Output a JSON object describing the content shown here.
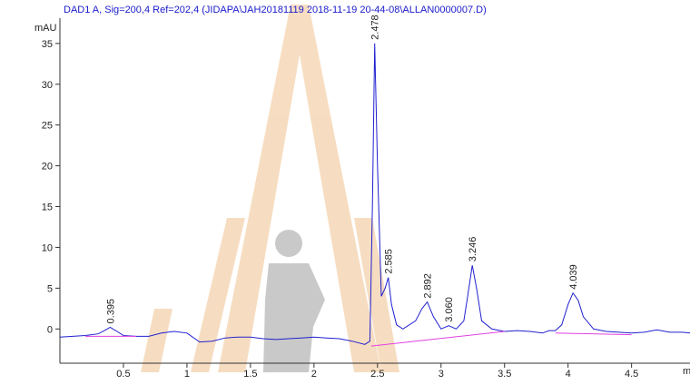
{
  "chart_data": {
    "type": "line",
    "title": "DAD1 A, Sig=200,4 Ref=202,4 (JIDAPA\\JAH20181119 2018-11-19 20-44-08\\ALLAN0000007.D)",
    "y_label": "mAU",
    "x_label": "m",
    "xlim": [
      0,
      4.96
    ],
    "ylim": [
      -4.2,
      38.1
    ],
    "xticks": [
      0.5,
      1,
      1.5,
      2,
      2.5,
      3,
      3.5,
      4,
      4.5
    ],
    "yticks": [
      0,
      5,
      10,
      15,
      20,
      25,
      30,
      35
    ],
    "series": [
      {
        "color": "#2020d0",
        "x": [
          0,
          0.1,
          0.2,
          0.3,
          0.35,
          0.395,
          0.45,
          0.5,
          0.6,
          0.7,
          0.8,
          0.9,
          1.0,
          1.1,
          1.2,
          1.3,
          1.4,
          1.5,
          1.6,
          1.7,
          1.8,
          1.9,
          2.0,
          2.1,
          2.2,
          2.3,
          2.4,
          2.44,
          2.46,
          2.478,
          2.5,
          2.53,
          2.56,
          2.585,
          2.61,
          2.65,
          2.7,
          2.8,
          2.85,
          2.892,
          2.94,
          3.0,
          3.06,
          3.12,
          3.18,
          3.21,
          3.246,
          3.28,
          3.32,
          3.4,
          3.5,
          3.6,
          3.7,
          3.8,
          3.85,
          3.9,
          3.95,
          4.0,
          4.039,
          4.08,
          4.12,
          4.2,
          4.3,
          4.4,
          4.5,
          4.6,
          4.7,
          4.8,
          4.9,
          4.96
        ],
        "values": [
          -1,
          -0.9,
          -0.8,
          -0.6,
          -0.2,
          0.2,
          -0.3,
          -0.8,
          -0.9,
          -0.9,
          -0.5,
          -0.3,
          -0.5,
          -1.6,
          -1.5,
          -1.1,
          -1,
          -1,
          -1.2,
          -1.3,
          -1.2,
          -1.1,
          -1,
          -1.1,
          -1.2,
          -1.5,
          -1.9,
          -1.5,
          15,
          35,
          20,
          4,
          5,
          6.3,
          3,
          0.5,
          0,
          1,
          2.5,
          3.3,
          1.5,
          0,
          0.4,
          0,
          1,
          4,
          7.8,
          5,
          1,
          0,
          -0.3,
          -0.2,
          -0.3,
          -0.5,
          -0.2,
          -0.2,
          0.5,
          3,
          4.4,
          3.5,
          1.5,
          0,
          -0.3,
          -0.4,
          -0.5,
          -0.4,
          -0.1,
          -0.4,
          -0.4,
          -0.5
        ]
      },
      {
        "color": "#e040e0",
        "x": [
          0.2,
          0.6,
          0.62,
          2.45,
          3.5,
          3.52,
          3.9,
          4.5
        ],
        "values": [
          -0.9,
          -0.9,
          null,
          -2.1,
          -0.3,
          null,
          -0.5,
          -0.7
        ]
      }
    ],
    "peaks": {
      "x": [
        0.395,
        2.478,
        2.585,
        2.892,
        3.06,
        3.246,
        4.039
      ],
      "heights": [
        0.2,
        35,
        6.3,
        3.3,
        0.4,
        7.8,
        4.4
      ],
      "labels": [
        "0.395",
        "2.478",
        "2.585",
        "2.892",
        "3.060",
        "3.246",
        "4.039"
      ]
    }
  }
}
